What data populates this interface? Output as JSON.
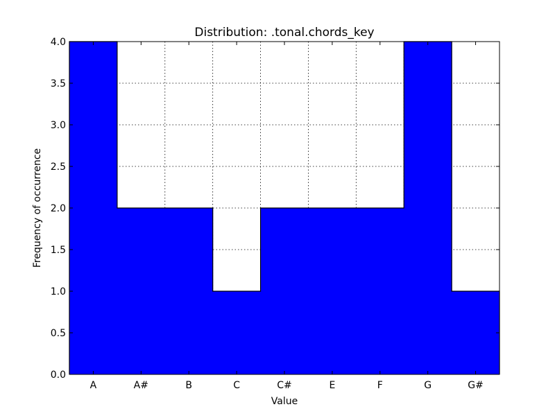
{
  "chart_data": {
    "type": "bar",
    "title": "Distribution: .tonal.chords_key",
    "xlabel": "Value",
    "ylabel": "Frequency of occurrence",
    "categories": [
      "A",
      "A#",
      "B",
      "C",
      "C#",
      "E",
      "F",
      "G",
      "G#"
    ],
    "values": [
      4,
      2,
      2,
      1,
      2,
      2,
      2,
      4,
      1
    ],
    "ylim": [
      0,
      4.0
    ],
    "yticks": [
      "0.0",
      "0.5",
      "1.0",
      "1.5",
      "2.0",
      "2.5",
      "3.0",
      "3.5",
      "4.0"
    ],
    "grid": true,
    "bar_color": "#0000ff",
    "edge_color": "#000000"
  }
}
